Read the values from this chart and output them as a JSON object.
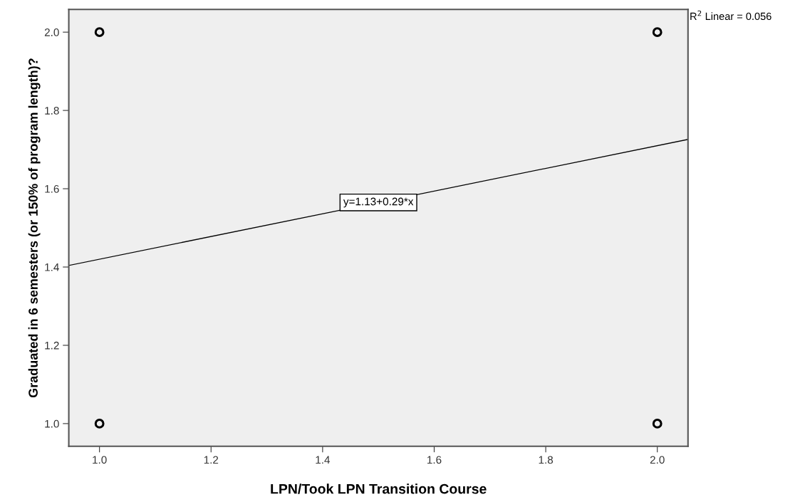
{
  "chart_data": {
    "type": "scatter",
    "xlabel": "LPN/Took LPN Transition Course",
    "ylabel": "Graduated in 6 semesters (or 150% of program length)?",
    "series": [
      {
        "color": "#000000",
        "x": [
          1.0,
          1.0,
          2.0,
          2.0
        ],
        "values": [
          2.0,
          1.0,
          2.0,
          1.0
        ],
        "marker": "circle"
      },
      {
        "type": "line",
        "color": "#000000",
        "x": [
          0.945,
          2.055
        ],
        "values": [
          1.404,
          1.726
        ],
        "marker": "none"
      }
    ],
    "xlim": [
      0.945,
      2.055
    ],
    "xticks": [
      {
        "value": 1.0,
        "label": "1.0"
      },
      1.2,
      1.4,
      1.6,
      1.8,
      {
        "value": 2.0,
        "label": "2.0"
      }
    ],
    "ylim": [
      0.942,
      2.058
    ],
    "yticks": [
      {
        "value": 1.0,
        "label": "1.0"
      },
      1.2,
      1.4,
      1.6,
      1.8,
      {
        "value": 2.0,
        "label": "2.0"
      }
    ],
    "grid": false,
    "legend": false,
    "annotations": [
      {
        "text": "y=1.13+0.29*x",
        "x": 1.5,
        "y": 1.565
      },
      "R$^{2}$ Linear = 0.056"
    ]
  }
}
